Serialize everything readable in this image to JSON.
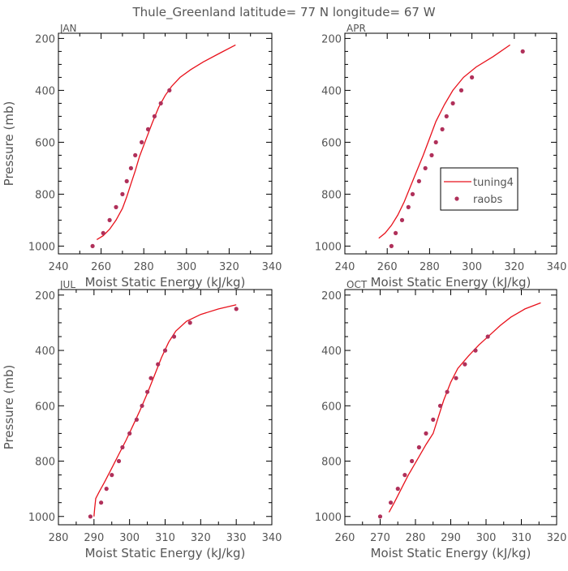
{
  "title": "Thule_Greenland  latitude= 77 N longitude= 67 W",
  "colors": {
    "model": "#e8111b",
    "obs": "#b0305a",
    "axis": "#000000",
    "text": "#555555"
  },
  "legend": {
    "model_label": "tuning4",
    "obs_label": "raobs"
  },
  "chart_data": [
    {
      "type": "line",
      "panel": "JAN",
      "xlabel": "Moist Static Energy (kJ/kg)",
      "ylabel": "Pressure (mb)",
      "xlim": [
        240,
        340
      ],
      "ylim": [
        1030,
        180
      ],
      "xticks": [
        240,
        260,
        280,
        300,
        320,
        340
      ],
      "xticks_minor": [
        250,
        270,
        290,
        310,
        330
      ],
      "yticks": [
        200,
        400,
        600,
        800,
        1000
      ],
      "legend": false,
      "series": [
        {
          "name": "tuning4",
          "kind": "line",
          "points": [
            [
              258,
              975
            ],
            [
              261,
              960
            ],
            [
              264,
              935
            ],
            [
              267,
              900
            ],
            [
              270,
              855
            ],
            [
              272,
              810
            ],
            [
              274,
              760
            ],
            [
              276,
              710
            ],
            [
              278,
              655
            ],
            [
              281,
              590
            ],
            [
              284,
              525
            ],
            [
              287,
              465
            ],
            [
              290,
              420
            ],
            [
              293,
              385
            ],
            [
              297,
              350
            ],
            [
              302,
              320
            ],
            [
              308,
              290
            ],
            [
              316,
              255
            ],
            [
              323,
              225
            ]
          ]
        },
        {
          "name": "raobs",
          "kind": "scatter",
          "points": [
            [
              256,
              1000
            ],
            [
              261,
              950
            ],
            [
              264,
              900
            ],
            [
              267,
              850
            ],
            [
              270,
              800
            ],
            [
              272,
              750
            ],
            [
              274,
              700
            ],
            [
              276,
              650
            ],
            [
              279,
              600
            ],
            [
              282,
              550
            ],
            [
              285,
              500
            ],
            [
              288,
              450
            ],
            [
              292,
              400
            ]
          ]
        }
      ]
    },
    {
      "type": "line",
      "panel": "APR",
      "xlabel": "Moist Static Energy (kJ/kg)",
      "ylabel": "",
      "xlim": [
        240,
        340
      ],
      "ylim": [
        1030,
        180
      ],
      "xticks": [
        240,
        260,
        280,
        300,
        320,
        340
      ],
      "xticks_minor": [
        250,
        270,
        290,
        310,
        330
      ],
      "yticks": [
        200,
        400,
        600,
        800,
        1000
      ],
      "legend": true,
      "series": [
        {
          "name": "tuning4",
          "kind": "line",
          "points": [
            [
              256,
              970
            ],
            [
              259,
              950
            ],
            [
              262,
              920
            ],
            [
              265,
              880
            ],
            [
              268,
              830
            ],
            [
              271,
              770
            ],
            [
              274,
              710
            ],
            [
              277,
              650
            ],
            [
              280,
              585
            ],
            [
              283,
              520
            ],
            [
              287,
              455
            ],
            [
              291,
              400
            ],
            [
              296,
              350
            ],
            [
              302,
              310
            ],
            [
              310,
              270
            ],
            [
              318,
              225
            ]
          ]
        },
        {
          "name": "raobs",
          "kind": "scatter",
          "points": [
            [
              262,
              1000
            ],
            [
              264,
              950
            ],
            [
              267,
              900
            ],
            [
              270,
              850
            ],
            [
              272,
              800
            ],
            [
              275,
              750
            ],
            [
              278,
              700
            ],
            [
              281,
              650
            ],
            [
              283,
              600
            ],
            [
              286,
              550
            ],
            [
              288,
              500
            ],
            [
              291,
              450
            ],
            [
              295,
              400
            ],
            [
              300,
              350
            ],
            [
              324,
              250
            ]
          ]
        }
      ]
    },
    {
      "type": "line",
      "panel": "JUL",
      "xlabel": "Moist Static Energy (kJ/kg)",
      "ylabel": "Pressure (mb)",
      "xlim": [
        280,
        340
      ],
      "ylim": [
        1030,
        180
      ],
      "xticks": [
        280,
        290,
        300,
        310,
        320,
        330,
        340
      ],
      "xticks_minor": [
        285,
        295,
        305,
        315,
        325,
        335
      ],
      "yticks": [
        200,
        400,
        600,
        800,
        1000
      ],
      "legend": false,
      "series": [
        {
          "name": "tuning4",
          "kind": "line",
          "points": [
            [
              290,
              1000
            ],
            [
              290.2,
              970
            ],
            [
              290.5,
              935
            ],
            [
              291.5,
              910
            ],
            [
              293,
              875
            ],
            [
              295,
              825
            ],
            [
              297,
              775
            ],
            [
              299,
              725
            ],
            [
              301,
              670
            ],
            [
              303,
              615
            ],
            [
              305,
              555
            ],
            [
              307,
              490
            ],
            [
              309,
              425
            ],
            [
              311,
              370
            ],
            [
              313,
              330
            ],
            [
              316,
              295
            ],
            [
              320,
              270
            ],
            [
              325,
              250
            ],
            [
              330,
              235
            ]
          ]
        },
        {
          "name": "raobs",
          "kind": "scatter",
          "points": [
            [
              289,
              1000
            ],
            [
              292,
              950
            ],
            [
              293.5,
              900
            ],
            [
              295,
              850
            ],
            [
              297,
              800
            ],
            [
              298,
              750
            ],
            [
              300,
              700
            ],
            [
              302,
              650
            ],
            [
              303.5,
              600
            ],
            [
              305,
              550
            ],
            [
              306,
              500
            ],
            [
              308,
              450
            ],
            [
              310,
              400
            ],
            [
              312.5,
              350
            ],
            [
              317,
              300
            ],
            [
              330,
              250
            ]
          ]
        }
      ]
    },
    {
      "type": "line",
      "panel": "OCT",
      "xlabel": "Moist Static Energy (kJ/kg)",
      "ylabel": "",
      "xlim": [
        260,
        320
      ],
      "ylim": [
        1030,
        180
      ],
      "xticks": [
        260,
        270,
        280,
        290,
        300,
        310,
        320
      ],
      "xticks_minor": [
        265,
        275,
        285,
        295,
        305,
        315
      ],
      "yticks": [
        200,
        400,
        600,
        800,
        1000
      ],
      "legend": false,
      "series": [
        {
          "name": "tuning4",
          "kind": "line",
          "points": [
            [
              272.5,
              985
            ],
            [
              274,
              950
            ],
            [
              276,
              900
            ],
            [
              278,
              850
            ],
            [
              280.5,
              795
            ],
            [
              283,
              740
            ],
            [
              285,
              700
            ],
            [
              286.5,
              640
            ],
            [
              288,
              580
            ],
            [
              290,
              515
            ],
            [
              292,
              465
            ],
            [
              295,
              420
            ],
            [
              298,
              380
            ],
            [
              301,
              345
            ],
            [
              304,
              310
            ],
            [
              307,
              280
            ],
            [
              311,
              250
            ],
            [
              315.5,
              228
            ]
          ]
        },
        {
          "name": "raobs",
          "kind": "scatter",
          "points": [
            [
              270,
              1000
            ],
            [
              273,
              950
            ],
            [
              275,
              900
            ],
            [
              277,
              850
            ],
            [
              279,
              800
            ],
            [
              281,
              750
            ],
            [
              283,
              700
            ],
            [
              285,
              650
            ],
            [
              287,
              600
            ],
            [
              289,
              550
            ],
            [
              291.5,
              500
            ],
            [
              294,
              450
            ],
            [
              297,
              400
            ],
            [
              300.5,
              350
            ]
          ]
        }
      ]
    }
  ]
}
